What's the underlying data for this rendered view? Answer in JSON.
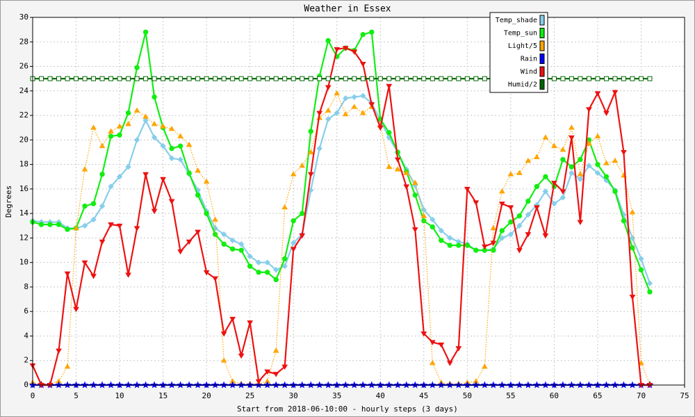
{
  "chart_data": {
    "type": "line",
    "title": "Weather in Essex",
    "x_label": "Start from 2018-06-10:00 - hourly steps (3 days)",
    "y_label": "Degrees",
    "x": [
      0,
      1,
      2,
      3,
      4,
      5,
      6,
      7,
      8,
      9,
      10,
      11,
      12,
      13,
      14,
      15,
      16,
      17,
      18,
      19,
      20,
      21,
      22,
      23,
      24,
      25,
      26,
      27,
      28,
      29,
      30,
      31,
      32,
      33,
      34,
      35,
      36,
      37,
      38,
      39,
      40,
      41,
      42,
      43,
      44,
      45,
      46,
      47,
      48,
      49,
      50,
      51,
      52,
      53,
      54,
      55,
      56,
      57,
      58,
      59,
      60,
      61,
      62,
      63,
      64,
      65,
      66,
      67,
      68,
      69,
      70,
      71
    ],
    "xlim": [
      0,
      75
    ],
    "xticks": [
      0,
      5,
      10,
      15,
      20,
      25,
      30,
      35,
      40,
      45,
      50,
      55,
      60,
      65,
      70,
      75
    ],
    "ylim": [
      0,
      30
    ],
    "yticks": [
      0,
      2,
      4,
      6,
      8,
      10,
      12,
      14,
      16,
      18,
      20,
      22,
      24,
      26,
      28,
      30
    ],
    "grid": true,
    "legend": "top-right",
    "series": [
      {
        "name": "Temp_shade",
        "color": "#87ceeb",
        "marker": "diamond",
        "line": "solid",
        "values": [
          13.4,
          13.3,
          13.3,
          13.3,
          12.8,
          12.8,
          13.0,
          13.5,
          14.6,
          16.2,
          17.0,
          17.8,
          20.0,
          21.6,
          20.2,
          19.5,
          18.5,
          18.4,
          17.2,
          15.9,
          14.2,
          12.8,
          12.3,
          11.8,
          11.5,
          10.5,
          10.0,
          10.0,
          9.4,
          9.7,
          11.6,
          12.3,
          15.9,
          19.3,
          21.7,
          22.2,
          23.4,
          23.5,
          23.6,
          23.0,
          21.6,
          20.2,
          19.0,
          17.6,
          16.3,
          14.3,
          13.5,
          12.6,
          12.0,
          11.7,
          11.5,
          11.0,
          11.0,
          11.1,
          12.0,
          12.3,
          13.0,
          13.9,
          14.7,
          15.8,
          14.8,
          15.3,
          17.3,
          16.8,
          17.9,
          17.3,
          16.7,
          15.9,
          13.9,
          12.0,
          10.3,
          8.3
        ]
      },
      {
        "name": "Temp_sun",
        "color": "#11ee11",
        "marker": "circle",
        "line": "solid",
        "values": [
          13.3,
          13.1,
          13.1,
          13.1,
          12.7,
          12.8,
          14.6,
          14.8,
          17.2,
          20.3,
          20.4,
          22.2,
          25.9,
          28.8,
          23.5,
          21.0,
          19.3,
          19.5,
          17.3,
          15.5,
          14.0,
          12.3,
          11.5,
          11.1,
          11.0,
          9.7,
          9.2,
          9.2,
          8.6,
          10.3,
          13.4,
          14.0,
          20.7,
          25.2,
          28.1,
          26.8,
          27.5,
          27.3,
          28.6,
          28.8,
          21.7,
          20.6,
          19.0,
          17.4,
          15.5,
          13.4,
          12.9,
          11.8,
          11.4,
          11.4,
          11.4,
          11.0,
          11.0,
          11.0,
          12.6,
          13.3,
          13.8,
          15.0,
          16.2,
          17.0,
          16.2,
          18.4,
          17.8,
          18.4,
          20.0,
          18.0,
          17.0,
          15.8,
          13.4,
          11.2,
          9.4,
          7.6
        ]
      },
      {
        "name": "Light/5",
        "color": "#ffa500",
        "marker": "triangle-up",
        "line": "dotted",
        "values": [
          0.2,
          0.1,
          0.1,
          0.3,
          1.5,
          12.8,
          17.6,
          21.0,
          19.5,
          20.7,
          21.1,
          21.3,
          22.4,
          21.9,
          21.3,
          21.1,
          20.9,
          20.3,
          19.6,
          17.5,
          16.6,
          13.5,
          2.0,
          0.3,
          0.1,
          0.1,
          0.1,
          0.3,
          2.8,
          14.5,
          17.2,
          17.9,
          19.0,
          21.8,
          22.4,
          23.8,
          22.1,
          22.7,
          22.2,
          22.7,
          21.2,
          17.8,
          17.6,
          17.3,
          16.5,
          13.8,
          1.8,
          0.2,
          0.1,
          0.1,
          0.2,
          0.3,
          1.5,
          12.8,
          15.8,
          17.2,
          17.3,
          18.3,
          18.6,
          20.2,
          19.5,
          19.2,
          21.0,
          17.2,
          19.7,
          20.3,
          18.1,
          18.3,
          17.1,
          14.1,
          1.8,
          0.1
        ]
      },
      {
        "name": "Rain",
        "color": "#0000ff",
        "marker": "star",
        "line": "solid",
        "values": [
          0,
          0,
          0,
          0,
          0,
          0,
          0,
          0,
          0,
          0,
          0,
          0,
          0,
          0,
          0,
          0,
          0,
          0,
          0,
          0,
          0,
          0,
          0,
          0,
          0,
          0,
          0,
          0,
          0,
          0,
          0,
          0,
          0,
          0,
          0,
          0,
          0,
          0,
          0,
          0,
          0,
          0,
          0,
          0,
          0,
          0,
          0,
          0,
          0,
          0,
          0,
          0,
          0,
          0,
          0,
          0,
          0,
          0,
          0,
          0,
          0,
          0,
          0,
          0,
          0,
          0,
          0,
          0,
          0,
          0,
          0,
          0
        ]
      },
      {
        "name": "Wind",
        "color": "#ee1111",
        "marker": "triangle-down",
        "line": "solid",
        "values": [
          1.6,
          0,
          0,
          2.8,
          9.1,
          6.2,
          10.0,
          8.9,
          11.7,
          13.1,
          13.0,
          9.0,
          12.8,
          17.2,
          14.2,
          16.8,
          15.0,
          10.9,
          11.7,
          12.5,
          9.2,
          8.7,
          4.2,
          5.4,
          2.4,
          5.1,
          0.3,
          1.1,
          0.9,
          1.5,
          11.1,
          12.2,
          17.2,
          22.2,
          24.3,
          27.4,
          27.5,
          27.2,
          26.2,
          22.9,
          21.0,
          24.4,
          18.4,
          16.2,
          12.7,
          4.2,
          3.5,
          3.3,
          1.8,
          3.0,
          16.0,
          14.9,
          11.3,
          11.6,
          14.8,
          14.5,
          11.0,
          12.3,
          14.5,
          12.2,
          16.5,
          15.8,
          20.2,
          13.3,
          22.5,
          23.8,
          22.2,
          23.9,
          19.0,
          7.2,
          0,
          0
        ]
      },
      {
        "name": "Humid/2",
        "color": "#006400",
        "marker": "square",
        "line": "solid",
        "values": [
          25,
          25,
          25,
          25,
          25,
          25,
          25,
          25,
          25,
          25,
          25,
          25,
          25,
          25,
          25,
          25,
          25,
          25,
          25,
          25,
          25,
          25,
          25,
          25,
          25,
          25,
          25,
          25,
          25,
          25,
          25,
          25,
          25,
          25,
          25,
          25,
          25,
          25,
          25,
          25,
          25,
          25,
          25,
          25,
          25,
          25,
          25,
          25,
          25,
          25,
          25,
          25,
          25,
          25,
          25,
          25,
          25,
          25,
          25,
          25,
          25,
          25,
          25,
          25,
          25,
          25,
          25,
          25,
          25,
          25,
          25,
          25
        ]
      }
    ]
  }
}
